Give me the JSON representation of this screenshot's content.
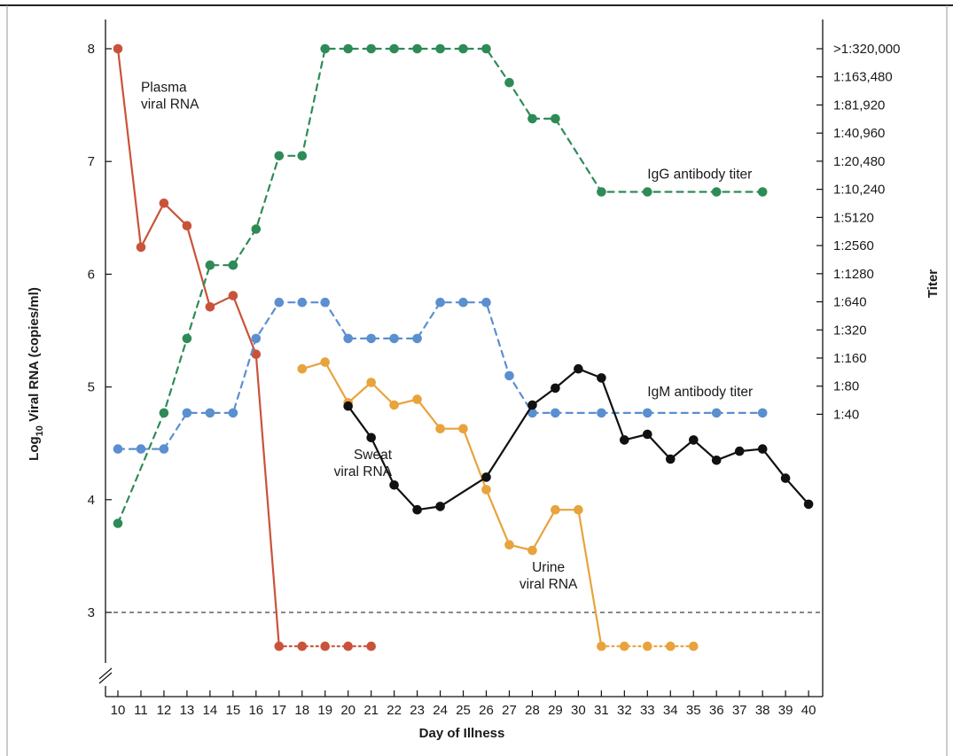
{
  "chart_data": {
    "type": "line",
    "xlabel": "Day of Illness",
    "ylabel_left": {
      "main": "Log",
      "sub": "10",
      "rest": " Viral RNA (copies/ml)"
    },
    "ylabel_right": "Titer",
    "x_ticks": [
      10,
      11,
      12,
      13,
      14,
      15,
      16,
      17,
      18,
      19,
      20,
      21,
      22,
      23,
      24,
      25,
      26,
      27,
      28,
      29,
      30,
      31,
      32,
      33,
      34,
      35,
      36,
      37,
      38,
      39,
      40
    ],
    "y_left_ticks": [
      3,
      4,
      5,
      6,
      7,
      8
    ],
    "y_left_range": [
      2.4,
      8.15
    ],
    "axis_break": true,
    "threshold_line": {
      "y": 3,
      "style": "dashed"
    },
    "right_axis_ticks": [
      {
        "label": ">1:320,000",
        "y": 8.0
      },
      {
        "label": "1:163,480",
        "y": 7.5
      },
      {
        "label": "1:81,920",
        "y": 7.0
      },
      {
        "label": "1:40,960",
        "y": 6.5
      },
      {
        "label": "1:20,480",
        "y": 6.0
      },
      {
        "label": "1:10,240",
        "y": 5.5
      },
      {
        "label": "1:5120",
        "y": 5.0
      },
      {
        "label": "1:2560",
        "y": 4.5
      },
      {
        "label": "1:1280",
        "y": 4.0
      },
      {
        "label": "1:640",
        "y": 3.5
      },
      {
        "label": "1:320",
        "y": 3.0
      },
      {
        "label": "1:160",
        "y": 2.5
      },
      {
        "label": "1:80",
        "y": 2.0
      },
      {
        "label": "1:40",
        "y": 1.5
      }
    ],
    "series": [
      {
        "name": "Plasma viral RNA",
        "color": "#c9533a",
        "line_style": "solid",
        "segments": [
          {
            "style": "solid",
            "points": [
              [
                10,
                8.0
              ],
              [
                11,
                6.24
              ],
              [
                12,
                6.63
              ],
              [
                13,
                6.43
              ],
              [
                14,
                5.71
              ],
              [
                15,
                5.81
              ],
              [
                16,
                5.29
              ],
              [
                17,
                2.7
              ]
            ]
          },
          {
            "style": "dotted",
            "points": [
              [
                17,
                2.7
              ],
              [
                18,
                2.7
              ],
              [
                19,
                2.7
              ],
              [
                20,
                2.7
              ],
              [
                21,
                2.7
              ]
            ]
          }
        ]
      },
      {
        "name": "IgG antibody titer",
        "color": "#2e8b57",
        "segments": [
          {
            "style": "dashed",
            "points": [
              [
                10,
                3.79
              ],
              [
                12,
                4.77
              ],
              [
                13,
                5.43
              ],
              [
                14,
                6.08
              ],
              [
                15,
                6.08
              ],
              [
                16,
                6.4
              ],
              [
                17,
                7.05
              ],
              [
                18,
                7.05
              ],
              [
                19,
                8.0
              ],
              [
                20,
                8.0
              ],
              [
                21,
                8.0
              ],
              [
                22,
                8.0
              ],
              [
                23,
                8.0
              ],
              [
                24,
                8.0
              ],
              [
                25,
                8.0
              ],
              [
                26,
                8.0
              ],
              [
                27,
                7.7
              ],
              [
                28,
                7.38
              ],
              [
                29,
                7.38
              ],
              [
                31,
                6.73
              ],
              [
                33,
                6.73
              ],
              [
                36,
                6.73
              ],
              [
                38,
                6.73
              ]
            ]
          }
        ]
      },
      {
        "name": "IgM antibody titer",
        "color": "#5b8fcf",
        "segments": [
          {
            "style": "dashed",
            "points": [
              [
                10,
                4.45
              ],
              [
                11,
                4.45
              ],
              [
                12,
                4.45
              ],
              [
                13,
                4.77
              ],
              [
                14,
                4.77
              ],
              [
                15,
                4.77
              ],
              [
                16,
                5.43
              ],
              [
                17,
                5.75
              ],
              [
                18,
                5.75
              ],
              [
                19,
                5.75
              ],
              [
                20,
                5.43
              ],
              [
                21,
                5.43
              ],
              [
                22,
                5.43
              ],
              [
                23,
                5.43
              ],
              [
                24,
                5.75
              ],
              [
                25,
                5.75
              ],
              [
                26,
                5.75
              ],
              [
                27,
                5.1
              ],
              [
                28,
                4.77
              ],
              [
                29,
                4.77
              ],
              [
                31,
                4.77
              ],
              [
                33,
                4.77
              ],
              [
                36,
                4.77
              ],
              [
                38,
                4.77
              ]
            ]
          }
        ]
      },
      {
        "name": "Urine viral RNA",
        "color": "#e8a33c",
        "segments": [
          {
            "style": "solid",
            "points": [
              [
                18,
                5.16
              ],
              [
                19,
                5.22
              ],
              [
                20,
                4.86
              ],
              [
                21,
                5.04
              ],
              [
                22,
                4.84
              ],
              [
                23,
                4.89
              ],
              [
                24,
                4.63
              ],
              [
                25,
                4.63
              ],
              [
                26,
                4.09
              ],
              [
                27,
                3.6
              ],
              [
                28,
                3.55
              ],
              [
                29,
                3.91
              ],
              [
                30,
                3.91
              ],
              [
                31,
                2.7
              ]
            ]
          },
          {
            "style": "dotted",
            "points": [
              [
                31,
                2.7
              ],
              [
                32,
                2.7
              ],
              [
                33,
                2.7
              ],
              [
                34,
                2.7
              ],
              [
                35,
                2.7
              ]
            ]
          }
        ]
      },
      {
        "name": "Sweat viral RNA",
        "color": "#111111",
        "segments": [
          {
            "style": "solid",
            "points": [
              [
                20,
                4.83
              ],
              [
                21,
                4.55
              ],
              [
                22,
                4.13
              ],
              [
                23,
                3.91
              ],
              [
                24,
                3.94
              ],
              [
                26,
                4.2
              ],
              [
                28,
                4.84
              ],
              [
                29,
                4.99
              ],
              [
                30,
                5.16
              ],
              [
                31,
                5.08
              ],
              [
                32,
                4.53
              ],
              [
                33,
                4.58
              ],
              [
                34,
                4.36
              ],
              [
                35,
                4.53
              ],
              [
                36,
                4.35
              ],
              [
                37,
                4.43
              ],
              [
                38,
                4.45
              ],
              [
                39,
                4.19
              ],
              [
                40,
                3.96
              ]
            ]
          }
        ]
      }
    ],
    "annotations": [
      {
        "lines": [
          "Plasma",
          "viral RNA"
        ],
        "x": 11.0,
        "y": 7.62,
        "anchor": "start"
      },
      {
        "lines": [
          "IgG antibody titer"
        ],
        "x": 33.0,
        "y": 6.85,
        "anchor": "start"
      },
      {
        "lines": [
          "IgM antibody titer"
        ],
        "x": 33.0,
        "y": 4.92,
        "anchor": "start"
      },
      {
        "lines": [
          "Sweat",
          "viral RNA"
        ],
        "x": 21.9,
        "y": 4.36,
        "anchor": "end"
      },
      {
        "lines": [
          "Urine",
          "viral RNA"
        ],
        "x": 28.7,
        "y": 3.36,
        "anchor": "middle"
      }
    ]
  }
}
